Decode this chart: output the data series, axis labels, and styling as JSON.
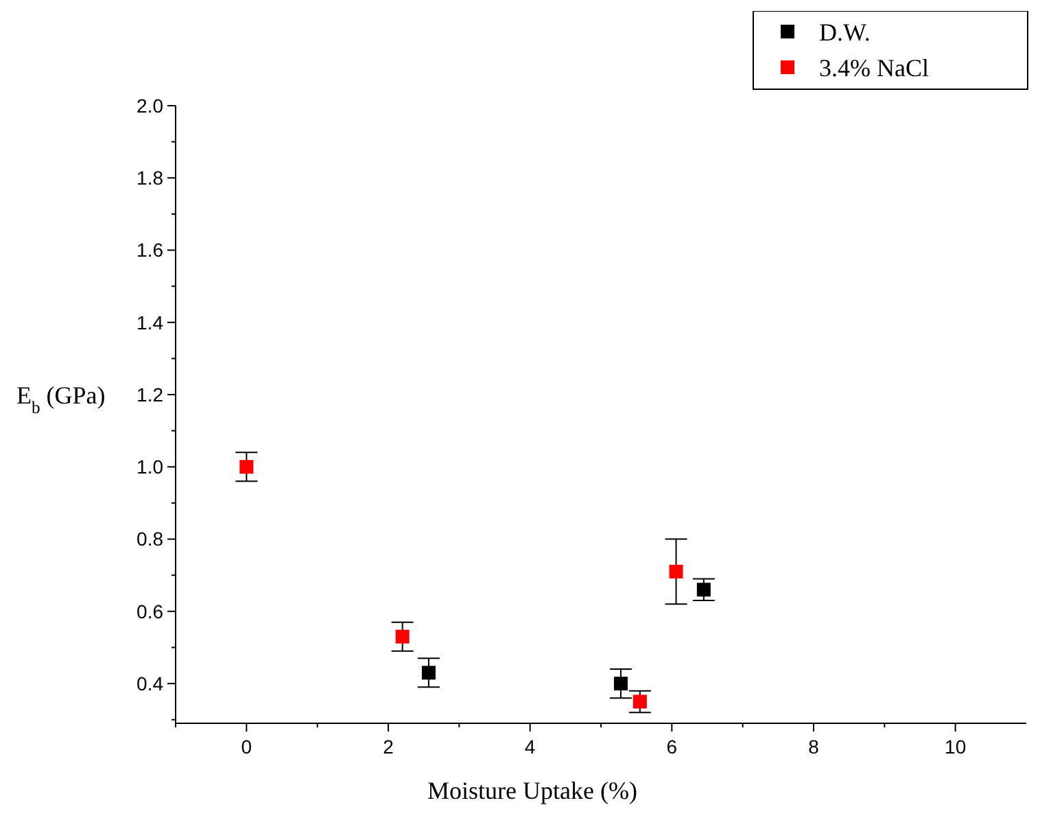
{
  "chart_data": {
    "type": "scatter",
    "xlabel": "Moisture Uptake (%)",
    "ylabel": "E$_{b}$ (GPa)",
    "xlim": [
      -1,
      11
    ],
    "ylim": [
      0.29,
      2.0
    ],
    "xticks": [
      {
        "value": -1,
        "label": null
      },
      0,
      {
        "value": 1,
        "label": null
      },
      2,
      {
        "value": 3,
        "label": null
      },
      4,
      {
        "value": 5,
        "label": null
      },
      6,
      {
        "value": 7,
        "label": null
      },
      8,
      {
        "value": 9,
        "label": null
      },
      10
    ],
    "yticks": [
      {
        "value": 0.3,
        "label": null
      },
      0.4,
      {
        "value": 0.5,
        "label": null
      },
      0.6,
      {
        "value": 0.7,
        "label": null
      },
      0.8,
      {
        "value": 0.9,
        "label": null
      },
      {
        "value": 1.0,
        "label": "1.0"
      },
      {
        "value": 1.1,
        "label": null
      },
      1.2,
      {
        "value": 1.3,
        "label": null
      },
      1.4,
      {
        "value": 1.5,
        "label": null
      },
      1.6,
      {
        "value": 1.7,
        "label": null
      },
      1.8,
      {
        "value": 1.9,
        "label": null
      },
      {
        "value": 2.0,
        "label": "2.0"
      }
    ],
    "marker": "square",
    "legend": "top right",
    "grid": false,
    "series": [
      {
        "name": "D.W.",
        "color": "#000000",
        "x": [
          2.57,
          5.28,
          6.45
        ],
        "values": [
          0.43,
          0.4,
          0.66
        ],
        "errors": [
          0.04,
          0.04,
          0.03
        ]
      },
      {
        "name": "3.4% NaCl",
        "color": "#ff0000",
        "x": [
          0,
          2.2,
          5.55,
          6.06
        ],
        "values": [
          1.0,
          0.53,
          0.35,
          0.71
        ],
        "errors": [
          0.04,
          0.04,
          0.03,
          0.09
        ]
      }
    ]
  }
}
